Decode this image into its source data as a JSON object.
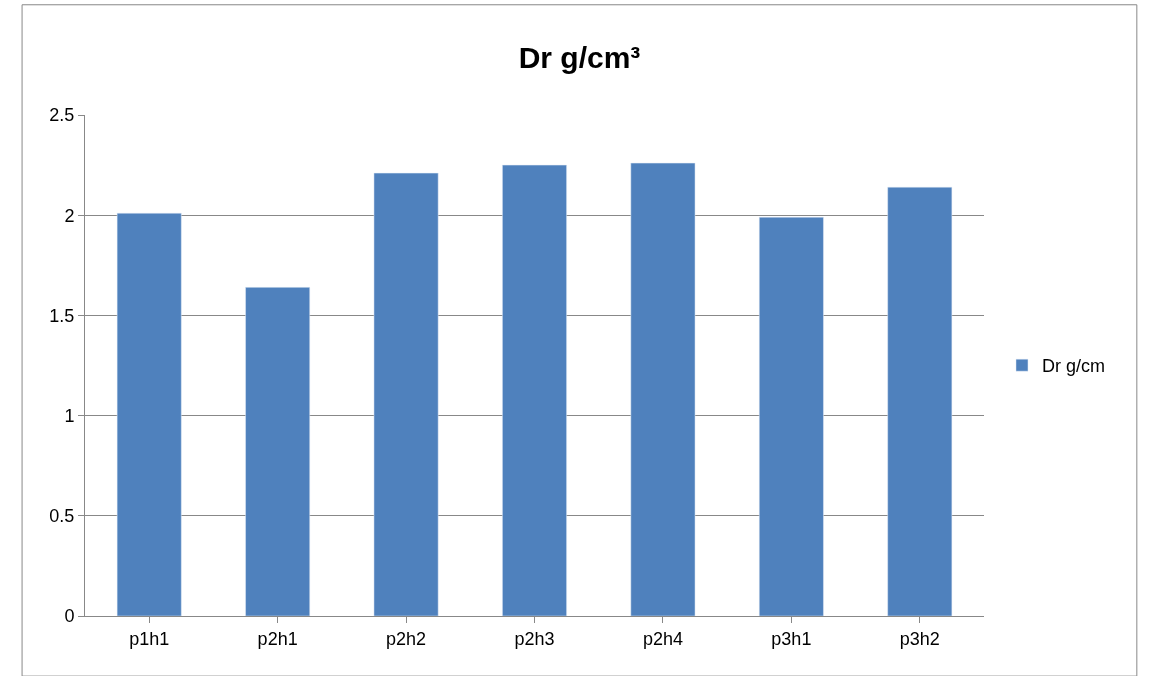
{
  "chart_data": {
    "type": "bar",
    "title": "Dr g/cm³",
    "categories": [
      "p1h1",
      "p2h1",
      "p2h2",
      "p2h3",
      "p2h4",
      "p3h1",
      "p3h2"
    ],
    "series": [
      {
        "name": "Dr g/cm",
        "color": "#4f81bd",
        "values": [
          2.01,
          1.64,
          2.21,
          2.25,
          2.26,
          1.99,
          2.14
        ]
      }
    ],
    "ylim": [
      0,
      2.5
    ],
    "yticks": [
      0,
      0.5,
      1,
      1.5,
      2,
      2.5
    ],
    "grid": "y",
    "legend": "right"
  }
}
